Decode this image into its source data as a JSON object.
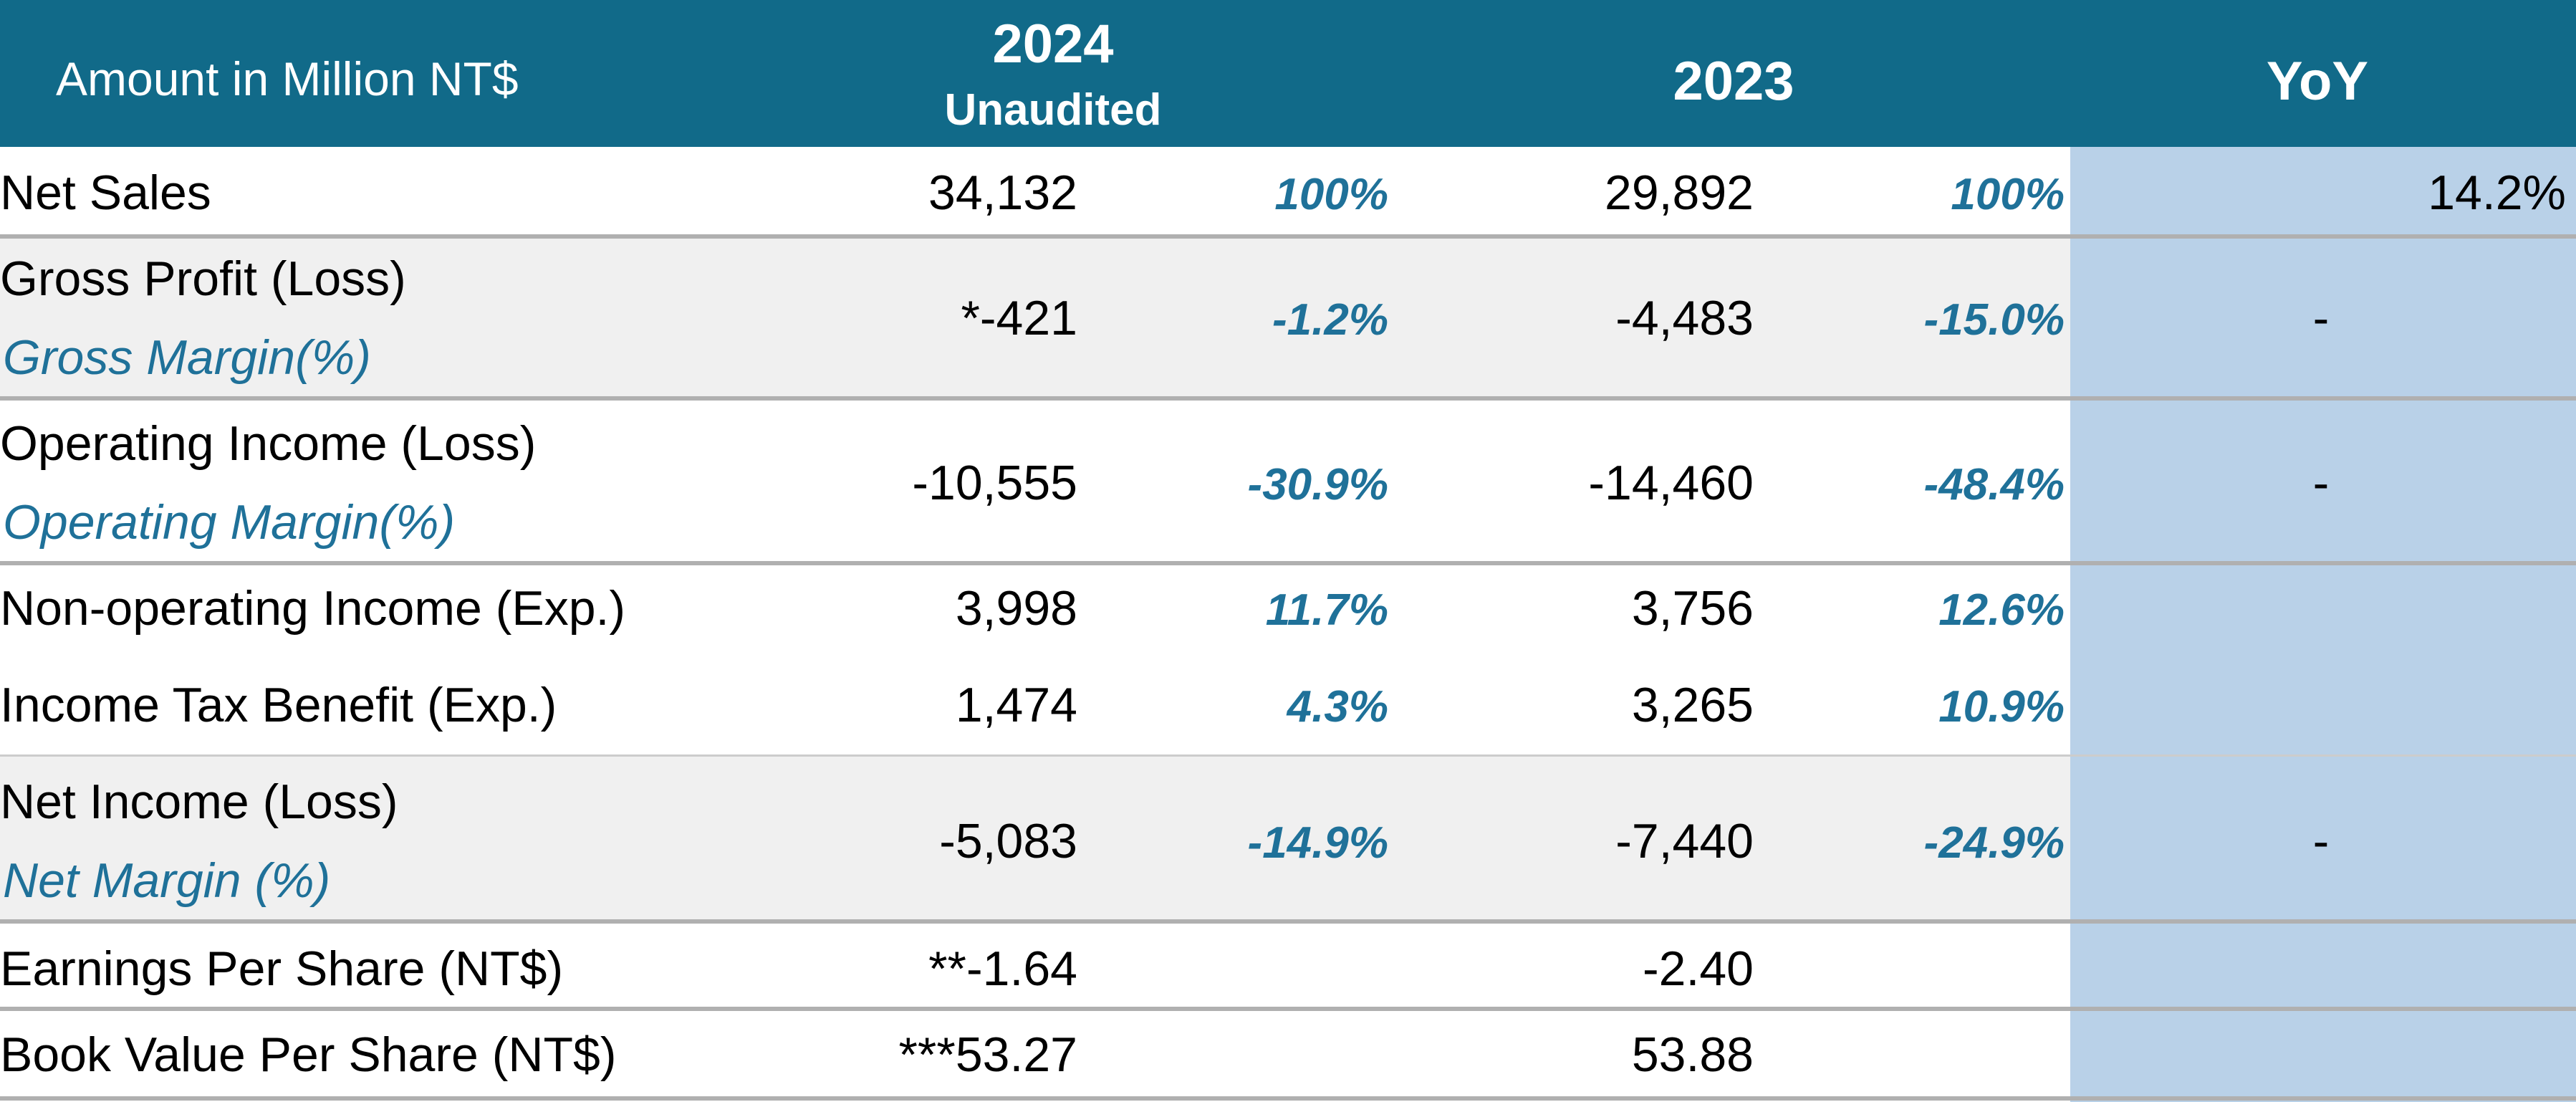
{
  "header": {
    "label": "Amount in Million NT$",
    "col_2024": "2024",
    "col_2024_note": "Unaudited",
    "col_2023": "2023",
    "col_yoy": "YoY"
  },
  "rows": {
    "net_sales": {
      "label": "Net Sales",
      "v2024": "34,132",
      "p2024": "100%",
      "v2023": "29,892",
      "p2023": "100%",
      "yoy": "14.2%"
    },
    "gross_profit": {
      "label": "Gross Profit (Loss)",
      "sub": "Gross Margin(%)",
      "v2024": "*-421",
      "p2024": "-1.2%",
      "v2023": "-4,483",
      "p2023": "-15.0%",
      "yoy": "-"
    },
    "operating_income": {
      "label": "Operating Income (Loss)",
      "sub": "Operating Margin(%)",
      "v2024": "-10,555",
      "p2024": "-30.9%",
      "v2023": "-14,460",
      "p2023": "-48.4%",
      "yoy": "-"
    },
    "non_operating": {
      "label": "Non-operating Income (Exp.)",
      "v2024": "3,998",
      "p2024": "11.7%",
      "v2023": "3,756",
      "p2023": "12.6%"
    },
    "income_tax": {
      "label": "Income Tax Benefit (Exp.)",
      "v2024": "1,474",
      "p2024": "4.3%",
      "v2023": "3,265",
      "p2023": "10.9%"
    },
    "net_income": {
      "label": "Net Income (Loss)",
      "sub": "Net Margin (%)",
      "v2024": "-5,083",
      "p2024": "-14.9%",
      "v2023": "-7,440",
      "p2023": "-24.9%",
      "yoy": "-"
    },
    "eps": {
      "label": "Earnings Per Share (NT$)",
      "v2024": "**-1.64",
      "v2023": "-2.40"
    },
    "bvps": {
      "label": "Book Value Per Share (NT$)",
      "v2024": "***53.27",
      "v2023": "53.88"
    }
  },
  "colors": {
    "header_bg": "#116a89",
    "yoy_column_bg": "#b9d1e8",
    "shaded_row_bg": "#f0f0f0",
    "italic_accent": "#1f7199"
  }
}
